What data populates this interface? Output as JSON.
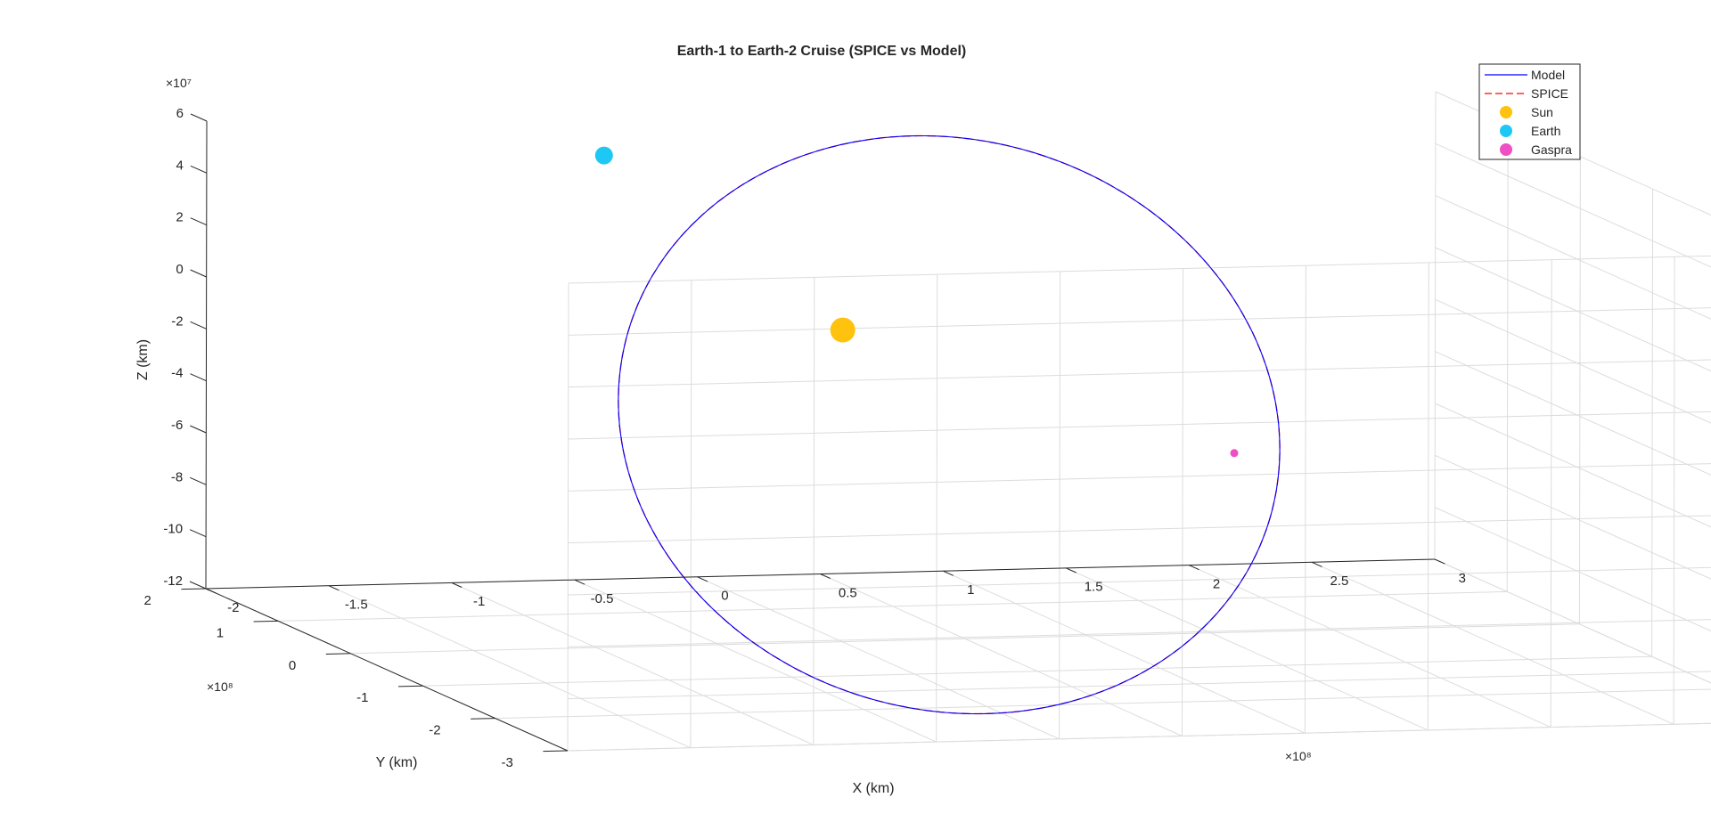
{
  "chart_data": {
    "type": "line",
    "title": "Earth-1 to Earth-2 Cruise (SPICE vs Model)",
    "xlabel": "X (km)",
    "ylabel": "Y (km)",
    "zlabel": "Z (km)",
    "x_exponent_label": "×10⁸",
    "y_exponent_label": "×10⁸",
    "z_exponent_label": "×10⁷",
    "xlim": [
      -2,
      3
    ],
    "ylim": [
      -3,
      2
    ],
    "zlim": [
      -12,
      6
    ],
    "x_ticks": [
      "-2",
      "-1.5",
      "-1",
      "-0.5",
      "0",
      "0.5",
      "1",
      "1.5",
      "2",
      "2.5",
      "3"
    ],
    "y_ticks": [
      "-3",
      "-2",
      "-1",
      "0",
      "1",
      "2"
    ],
    "z_ticks": [
      "-12",
      "-10",
      "-8",
      "-6",
      "-4",
      "-2",
      "0",
      "2",
      "4",
      "6"
    ],
    "grid": true,
    "legend_position": "top-right",
    "legend": [
      {
        "label": "Model",
        "kind": "line",
        "color": "#0000ff",
        "dash": "solid"
      },
      {
        "label": "SPICE",
        "kind": "line",
        "color": "#ff0000",
        "dash": "dashed"
      },
      {
        "label": "Sun",
        "kind": "marker",
        "color": "#ffc20e"
      },
      {
        "label": "Earth",
        "kind": "marker",
        "color": "#1ec8f5"
      },
      {
        "label": "Gaspra",
        "kind": "marker",
        "color": "#ee4fc3"
      }
    ],
    "series": [
      {
        "name": "Model",
        "color": "#0000ff"
      },
      {
        "name": "SPICE",
        "color": "#ff0000"
      }
    ],
    "markers": [
      {
        "name": "Sun",
        "color": "#ffc20e",
        "x": 0,
        "y": 0,
        "z": 0
      },
      {
        "name": "Earth",
        "color": "#1ec8f5",
        "x": -0.56,
        "y": 1.4,
        "z": 5.1
      },
      {
        "name": "Gaspra",
        "color": "#ee4fc3",
        "x": 1.09,
        "y": -1.71,
        "z": -2.85
      }
    ]
  }
}
